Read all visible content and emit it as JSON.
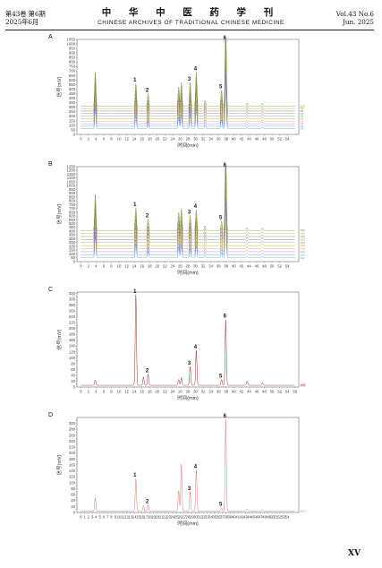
{
  "header": {
    "left_line1": "第43卷  第6期",
    "left_line2": "2025年6月",
    "center_cn": "中 华 中 医 药 学 刊",
    "center_en": "CHINESE ARCHIVES OF TRADITIONAL CHINESE MEDICINE",
    "right_line1": "Vol.43 No.6",
    "right_line2": "Jun. 2025"
  },
  "page_number": "XV",
  "chart_data": [
    {
      "type": "line",
      "panel": "A",
      "xlabel": "时间(min)",
      "ylabel": "信号(mV)",
      "xlim": [
        -1,
        57
      ],
      "ylim": [
        0,
        1050
      ],
      "x_ticks": [
        0,
        2,
        4,
        6,
        8,
        10,
        12,
        14,
        16,
        18,
        20,
        22,
        24,
        26,
        28,
        30,
        32,
        34,
        36,
        38,
        40,
        42,
        44,
        46,
        48,
        50,
        52,
        54
      ],
      "y_ticks": [
        0,
        50,
        100,
        150,
        200,
        250,
        300,
        350,
        400,
        450,
        500,
        550,
        600,
        650,
        700,
        750,
        800,
        850,
        900,
        950,
        1000,
        1050
      ],
      "series_count": 10,
      "offset_step": 28,
      "base_height": 62,
      "peaks": [
        {
          "label": "1",
          "rt": 14.4,
          "height": 200
        },
        {
          "label": "2",
          "rt": 17.6,
          "height": 110
        },
        {
          "label": "3",
          "rt": 28.6,
          "height": 210
        },
        {
          "label": "4",
          "rt": 30.2,
          "height": 300
        },
        {
          "label": "5",
          "rt": 36.8,
          "height": 140
        },
        {
          "label": "6",
          "rt": 37.9,
          "height": 720
        }
      ],
      "minor_peaks": [
        [
          3.8,
          300
        ],
        [
          25.6,
          170
        ],
        [
          26.3,
          210
        ],
        [
          32.5,
          50
        ],
        [
          43.5,
          30
        ],
        [
          47.5,
          25
        ]
      ],
      "legend": [
        "S1",
        "S2",
        "S3",
        "S4",
        "S5",
        "S6",
        "S7",
        "S8",
        "S9",
        "S10"
      ],
      "colors": [
        "#6b7fd7",
        "#2aa6c9",
        "#d35fbf",
        "#8fbf3f",
        "#e28a3a",
        "#5aa36b",
        "#b45a5a",
        "#7a7a7a",
        "#a9a13a",
        "#6e8f3a"
      ]
    },
    {
      "type": "line",
      "panel": "B",
      "xlabel": "时间(min)",
      "ylabel": "信号(mV)",
      "xlim": [
        -1,
        57
      ],
      "ylim": [
        0,
        1250
      ],
      "x_ticks": [
        0,
        2,
        4,
        6,
        8,
        10,
        12,
        14,
        16,
        18,
        20,
        22,
        24,
        26,
        28,
        30,
        32,
        34,
        36,
        38,
        40,
        42,
        44,
        46,
        48,
        50,
        52,
        54
      ],
      "y_ticks": [
        0,
        50,
        100,
        150,
        200,
        250,
        300,
        350,
        400,
        450,
        500,
        550,
        600,
        650,
        700,
        750,
        800,
        850,
        900,
        950,
        1000,
        1050,
        1100,
        1150,
        1200,
        1250
      ],
      "series_count": 10,
      "offset_step": 40,
      "base_height": 50,
      "peaks": [
        {
          "label": "1",
          "rt": 14.4,
          "height": 240
        },
        {
          "label": "2",
          "rt": 17.6,
          "height": 120
        },
        {
          "label": "3",
          "rt": 28.6,
          "height": 160
        },
        {
          "label": "4",
          "rt": 30.2,
          "height": 220
        },
        {
          "label": "5",
          "rt": 36.8,
          "height": 100
        },
        {
          "label": "6",
          "rt": 37.9,
          "height": 860
        }
      ],
      "minor_peaks": [
        [
          3.8,
          380
        ],
        [
          25.6,
          190
        ],
        [
          26.3,
          230
        ],
        [
          32.5,
          50
        ],
        [
          43.5,
          30
        ],
        [
          47.5,
          25
        ]
      ],
      "legend": [
        "S11",
        "S12",
        "S13",
        "S14",
        "S15",
        "S16",
        "S17",
        "S18",
        "S19",
        "S20"
      ],
      "colors": [
        "#6b7fd7",
        "#2aa6c9",
        "#d35fbf",
        "#8fbf3f",
        "#e28a3a",
        "#5aa36b",
        "#b45a5a",
        "#7a7a7a",
        "#a9a13a",
        "#6e8f3a"
      ]
    },
    {
      "type": "line",
      "panel": "C",
      "xlabel": "时间(min)",
      "ylabel": "信号(mV)",
      "xlim": [
        -1,
        57
      ],
      "ylim": [
        0,
        325
      ],
      "x_ticks": [
        0,
        2,
        4,
        6,
        8,
        10,
        12,
        14,
        16,
        18,
        20,
        22,
        24,
        26,
        28,
        30,
        32,
        34,
        36,
        38,
        40,
        42,
        44,
        46,
        48,
        50,
        52,
        54,
        56
      ],
      "y_ticks": [
        0,
        10,
        20,
        30,
        40,
        50,
        60,
        70,
        80,
        90,
        100,
        110,
        120,
        130,
        140,
        150,
        160,
        170,
        180,
        190,
        200,
        210,
        220,
        230,
        240,
        250,
        260,
        270,
        280,
        290,
        300,
        310,
        320
      ],
      "series_count": 1,
      "offset_step": 0,
      "base_height": 6,
      "peaks": [
        {
          "label": "1",
          "rt": 14.4,
          "height": 310
        },
        {
          "label": "2",
          "rt": 17.6,
          "height": 38
        },
        {
          "label": "3",
          "rt": 28.6,
          "height": 65
        },
        {
          "label": "4",
          "rt": 30.2,
          "height": 120
        },
        {
          "label": "5",
          "rt": 36.8,
          "height": 20
        },
        {
          "label": "6",
          "rt": 37.9,
          "height": 225
        }
      ],
      "minor_peaks": [
        [
          3.8,
          18
        ],
        [
          16.4,
          28
        ],
        [
          25.6,
          20
        ],
        [
          26.3,
          26
        ],
        [
          43.5,
          14
        ],
        [
          47.5,
          10
        ]
      ],
      "legend": [
        "对照"
      ],
      "colors": [
        "#8b1a1a"
      ]
    },
    {
      "type": "line",
      "panel": "D",
      "xlabel": "时间(min)",
      "ylabel": "信号(mV)",
      "xlim": [
        -1,
        57
      ],
      "ylim": [
        0,
        320
      ],
      "x_ticks": [
        0,
        1,
        2,
        3,
        4,
        5,
        6,
        7,
        8,
        9,
        10,
        11,
        12,
        13,
        14,
        15,
        16,
        17,
        18,
        19,
        20,
        21,
        22,
        23,
        24,
        25,
        26,
        27,
        28,
        29,
        30,
        31,
        32,
        33,
        34,
        35,
        36,
        37,
        38,
        39,
        40,
        41,
        42,
        43,
        44,
        45,
        46,
        47,
        48,
        49,
        50,
        51,
        52,
        53,
        54
      ],
      "y_ticks": [
        0,
        10,
        20,
        30,
        40,
        50,
        60,
        70,
        80,
        90,
        100,
        110,
        120,
        130,
        140,
        150,
        160,
        170,
        180,
        190,
        200,
        210,
        220,
        230,
        240,
        250,
        260,
        270,
        280,
        290,
        300,
        310
      ],
      "series_count": 1,
      "offset_step": 0,
      "base_height": 4,
      "peaks": [
        {
          "label": "1",
          "rt": 14.4,
          "height": 110
        },
        {
          "label": "2",
          "rt": 17.6,
          "height": 22
        },
        {
          "label": "3",
          "rt": 28.6,
          "height": 65
        },
        {
          "label": "4",
          "rt": 30.2,
          "height": 140
        },
        {
          "label": "5",
          "rt": 36.8,
          "height": 12
        },
        {
          "label": "6",
          "rt": 37.9,
          "height": 310
        }
      ],
      "minor_peaks": [
        [
          3.8,
          45
        ],
        [
          16.4,
          20
        ],
        [
          25.6,
          70
        ],
        [
          26.3,
          160
        ],
        [
          43.5,
          8
        ],
        [
          47.5,
          6
        ]
      ],
      "legend": [
        "S(U)"
      ],
      "colors": [
        "#d36a6a"
      ]
    }
  ]
}
